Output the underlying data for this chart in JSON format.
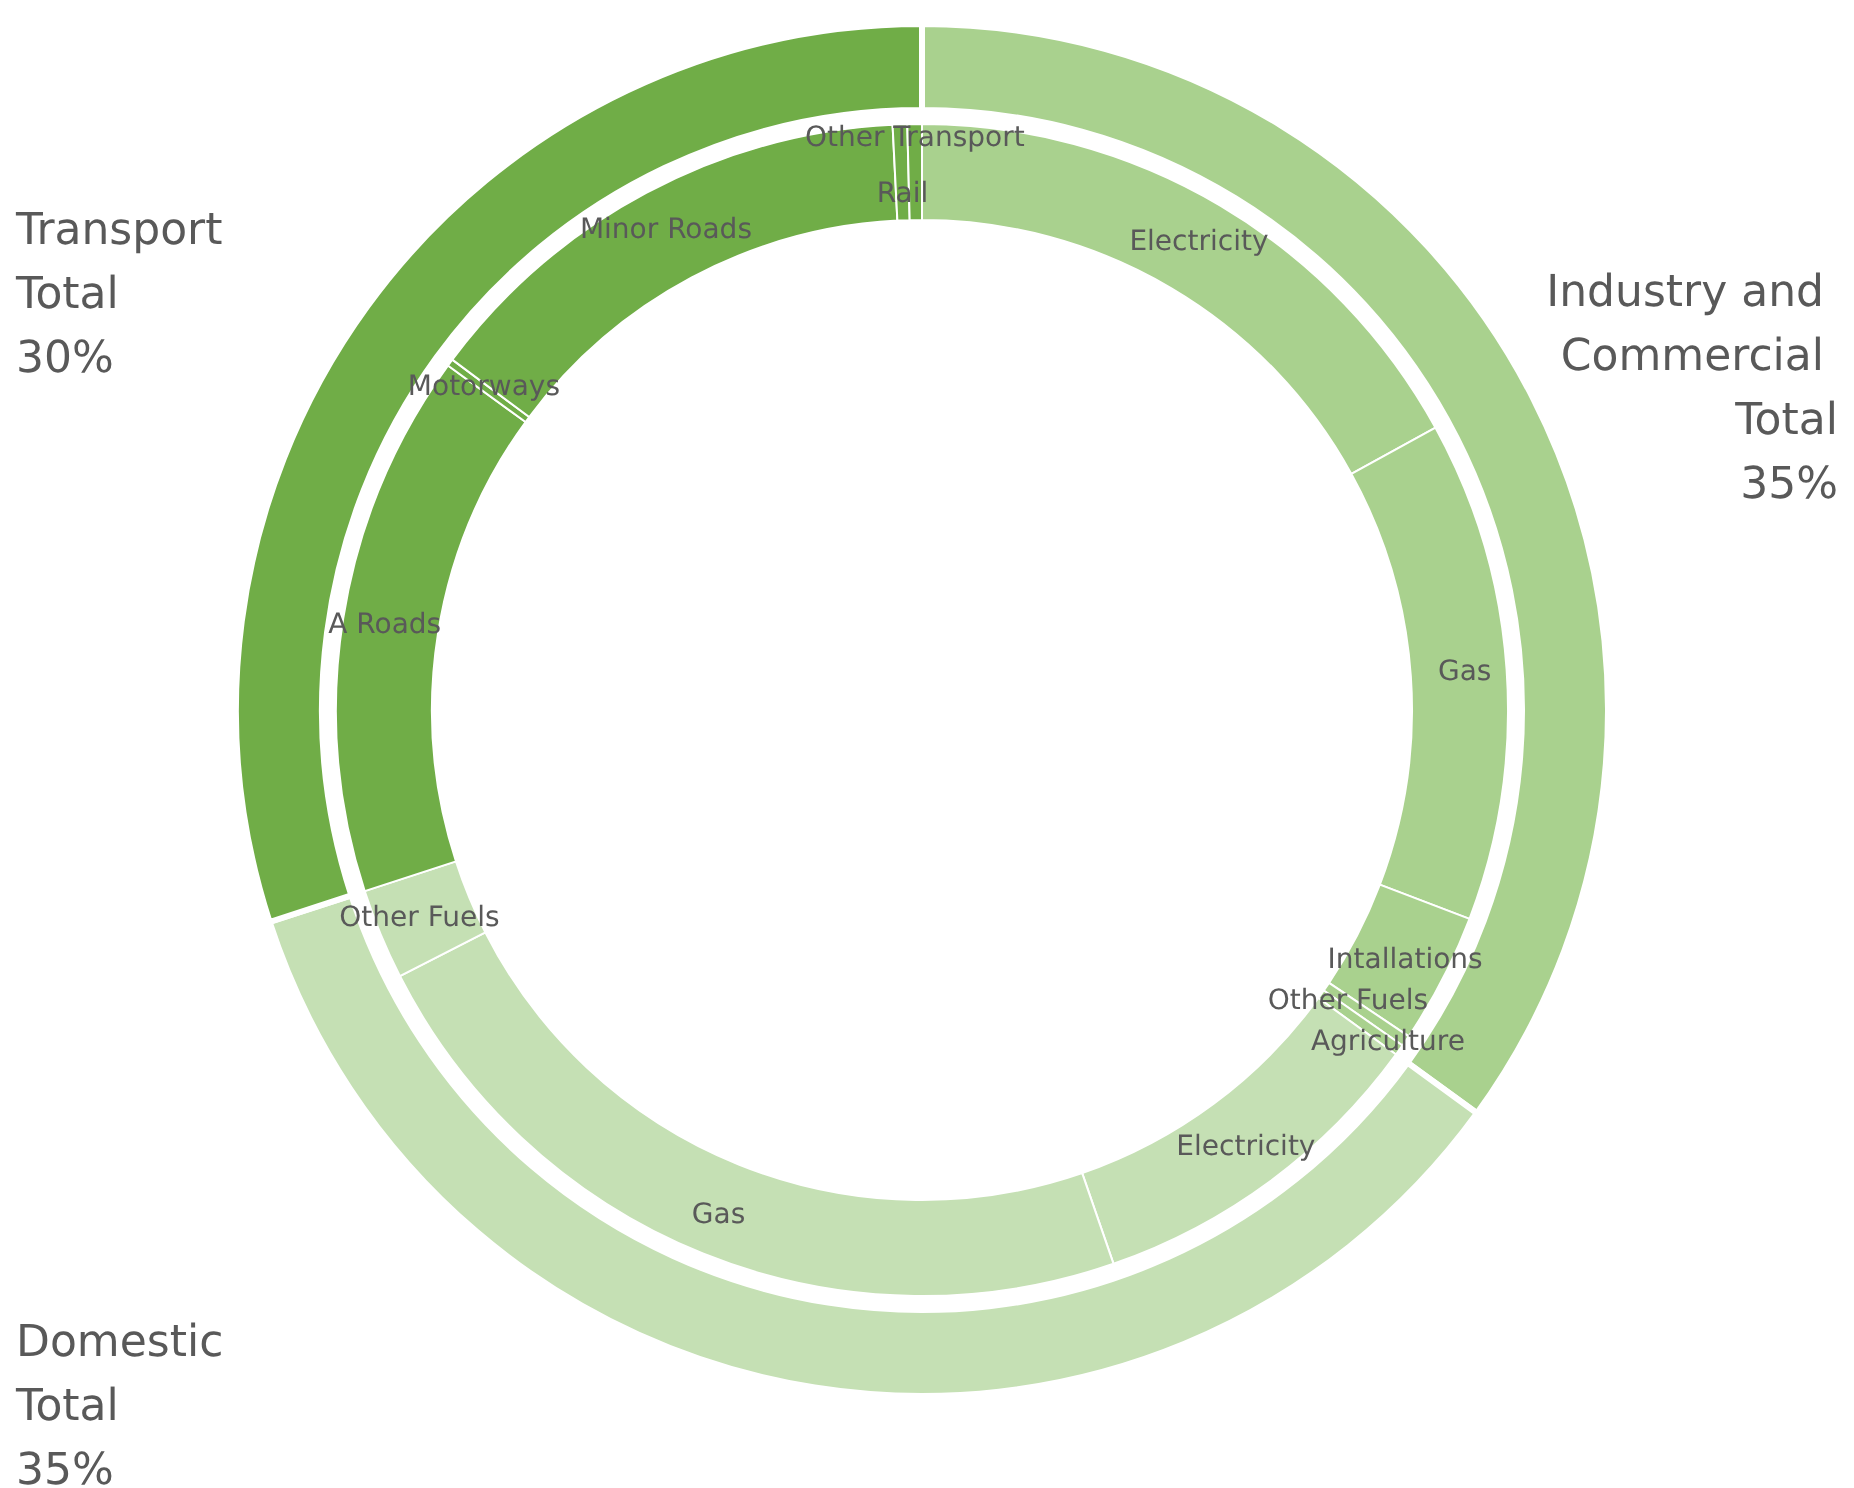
{
  "chart_data": [
    {
      "type": "donut",
      "categories": [
        "Electricity",
        "Gas",
        "Intallations",
        "Other Fuels",
        "Agriculture",
        "Electricity",
        "Gas",
        "Other Fuels",
        "A Roads",
        "Motorways",
        "Minor Roads",
        "Rail",
        "Other Transport"
      ],
      "values": [
        17,
        13.8,
        3.6,
        0.3,
        0.3,
        9.7,
        22.8,
        2.5,
        15,
        0.2,
        14,
        0.4,
        0.4
      ],
      "colors": [
        "#a9d18e",
        "#a9d18e",
        "#a9d18e",
        "#a9d18e",
        "#a9d18e",
        "#c5e0b4",
        "#c5e0b4",
        "#c5e0b4",
        "#70ad47",
        "#70ad47",
        "#70ad47",
        "#70ad47",
        "#70ad47"
      ],
      "legend": false
    },
    {
      "type": "donut",
      "categories": [
        "Industry and Commercial Total",
        "Domestic Total",
        "Transport Total"
      ],
      "values": [
        35,
        35,
        30
      ],
      "colors": [
        "#a9d18e",
        "#c5e0b4",
        "#70ad47"
      ],
      "value_labels": [
        "35%",
        "35%",
        "30%"
      ],
      "legend": false
    }
  ]
}
